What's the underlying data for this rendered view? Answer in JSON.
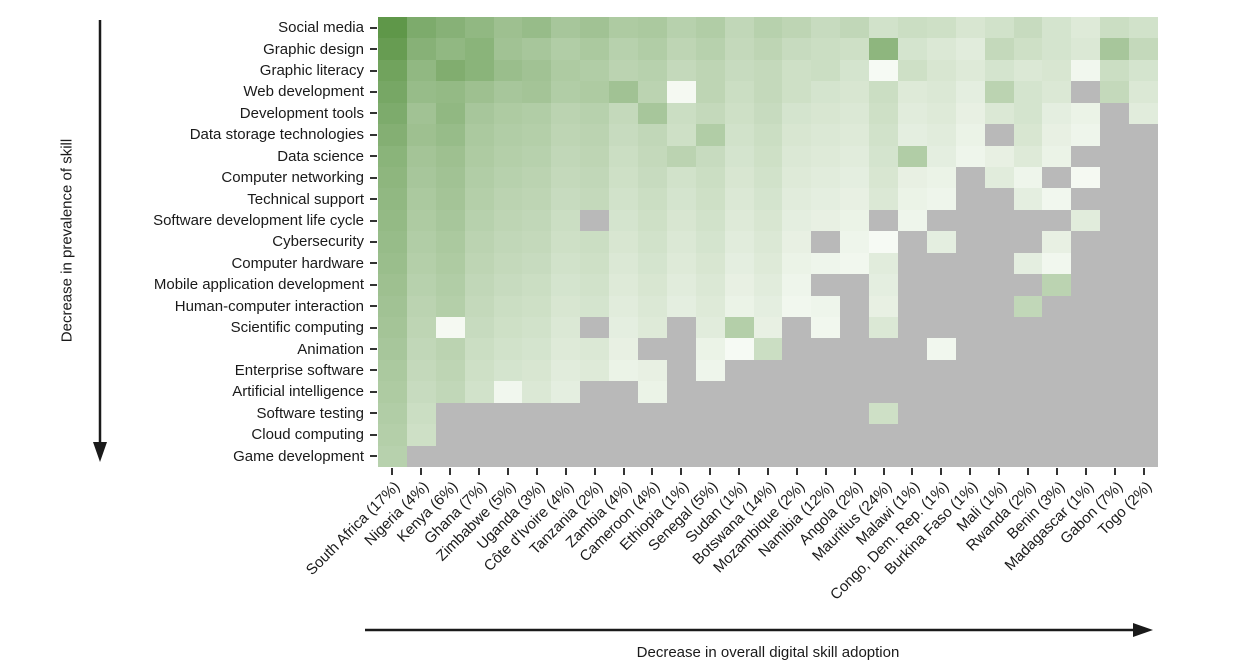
{
  "figure": {
    "y_axis_annotation": "Decrease in prevalence of skill",
    "x_axis_annotation": "Decrease in overall digital skill adoption"
  },
  "colors": {
    "green_high": "#5a9444",
    "green_low": "#fbfdf9",
    "missing": "#b9b9b9",
    "background": "#ffffff",
    "tick": "#333333",
    "arrow": "#1a1a1a"
  },
  "chart_data": {
    "type": "heatmap",
    "title": "",
    "xlabel": "Decrease in overall digital skill adoption",
    "ylabel": "Decrease in prevalence of skill",
    "legend_position": "none",
    "grid": false,
    "value_encoding": "estimated relative skill prevalence 0-100 (darker green = higher); null = no data (gray cell)",
    "rows": [
      "Social media",
      "Graphic design",
      "Graphic literacy",
      "Web development",
      "Development tools",
      "Data storage technologies",
      "Data science",
      "Computer networking",
      "Technical support",
      "Software development life cycle",
      "Cybersecurity",
      "Computer hardware",
      "Mobile application development",
      "Human-computer interaction",
      "Scientific computing",
      "Animation",
      "Enterprise software",
      "Artificial intelligence",
      "Software testing",
      "Cloud computing",
      "Game development"
    ],
    "columns": [
      "South Africa (17%)",
      "Nigeria (4%)",
      "Kenya (6%)",
      "Ghana (7%)",
      "Zimbabwe (5%)",
      "Uganda (3%)",
      "Côte d'Ivoire (4%)",
      "Tanzania (2%)",
      "Zambia (4%)",
      "Cameroon (4%)",
      "Ethiopia (1%)",
      "Senegal (5%)",
      "Sudan (1%)",
      "Botswana (14%)",
      "Mozambique (2%)",
      "Namibia (12%)",
      "Angola (2%)",
      "Mauritius (24%)",
      "Malawi (1%)",
      "Congo, Dem. Rep. (1%)",
      "Burkina Faso (1%)",
      "Mali (1%)",
      "Rwanda (2%)",
      "Benin (3%)",
      "Madagascar (1%)",
      "Gabon (7%)",
      "Togo (2%)"
    ],
    "values": [
      [
        97,
        78,
        72,
        66,
        58,
        62,
        52,
        56,
        48,
        50,
        42,
        46,
        36,
        42,
        38,
        32,
        36,
        26,
        30,
        28,
        22,
        26,
        32,
        24,
        18,
        30,
        26
      ],
      [
        92,
        72,
        66,
        70,
        56,
        52,
        46,
        50,
        42,
        46,
        38,
        42,
        34,
        38,
        32,
        30,
        28,
        68,
        24,
        20,
        16,
        34,
        28,
        24,
        20,
        52,
        34
      ],
      [
        86,
        66,
        76,
        70,
        60,
        56,
        48,
        46,
        40,
        42,
        34,
        38,
        32,
        34,
        28,
        30,
        24,
        3,
        28,
        22,
        18,
        24,
        20,
        22,
        6,
        30,
        24
      ],
      [
        82,
        62,
        64,
        58,
        52,
        54,
        46,
        48,
        56,
        40,
        4,
        38,
        30,
        34,
        28,
        24,
        22,
        30,
        18,
        20,
        14,
        40,
        24,
        20,
        null,
        34,
        20
      ],
      [
        78,
        56,
        66,
        52,
        48,
        46,
        40,
        42,
        34,
        52,
        30,
        34,
        28,
        32,
        24,
        22,
        20,
        28,
        16,
        18,
        12,
        20,
        24,
        14,
        10,
        null,
        16
      ],
      [
        74,
        58,
        62,
        50,
        46,
        44,
        38,
        40,
        32,
        36,
        28,
        46,
        26,
        30,
        22,
        20,
        18,
        26,
        14,
        16,
        10,
        null,
        22,
        12,
        8,
        null,
        null
      ],
      [
        70,
        54,
        58,
        48,
        44,
        42,
        36,
        38,
        30,
        34,
        40,
        32,
        24,
        28,
        20,
        18,
        16,
        24,
        46,
        14,
        8,
        12,
        18,
        10,
        null,
        null,
        null
      ],
      [
        68,
        52,
        56,
        46,
        42,
        40,
        34,
        36,
        28,
        32,
        26,
        30,
        22,
        26,
        18,
        16,
        14,
        22,
        12,
        10,
        null,
        16,
        8,
        null,
        4,
        null,
        null
      ],
      [
        66,
        50,
        54,
        44,
        40,
        38,
        32,
        34,
        26,
        30,
        24,
        28,
        20,
        24,
        16,
        14,
        12,
        20,
        10,
        8,
        null,
        null,
        14,
        6,
        null,
        null,
        null
      ],
      [
        64,
        48,
        52,
        42,
        38,
        36,
        30,
        null,
        24,
        28,
        22,
        26,
        18,
        22,
        14,
        12,
        10,
        null,
        8,
        null,
        null,
        null,
        null,
        null,
        16,
        null,
        null
      ],
      [
        62,
        46,
        50,
        40,
        36,
        34,
        28,
        30,
        22,
        26,
        20,
        24,
        16,
        20,
        12,
        null,
        8,
        3,
        null,
        14,
        null,
        null,
        null,
        12,
        null,
        null,
        null
      ],
      [
        60,
        44,
        48,
        38,
        34,
        32,
        26,
        28,
        20,
        24,
        18,
        22,
        14,
        18,
        10,
        8,
        6,
        16,
        null,
        null,
        null,
        null,
        14,
        6,
        null,
        null,
        null
      ],
      [
        58,
        42,
        46,
        36,
        32,
        30,
        24,
        26,
        18,
        22,
        16,
        20,
        12,
        16,
        8,
        null,
        null,
        14,
        null,
        null,
        null,
        null,
        null,
        40,
        null,
        null,
        null
      ],
      [
        56,
        40,
        44,
        34,
        30,
        28,
        22,
        24,
        16,
        20,
        14,
        18,
        10,
        14,
        6,
        8,
        null,
        12,
        null,
        null,
        null,
        null,
        36,
        null,
        null,
        null,
        null
      ],
      [
        54,
        38,
        4,
        32,
        28,
        26,
        20,
        null,
        14,
        18,
        null,
        16,
        44,
        12,
        null,
        6,
        null,
        20,
        null,
        null,
        null,
        null,
        null,
        null,
        null,
        null,
        null
      ],
      [
        52,
        36,
        40,
        30,
        26,
        24,
        18,
        20,
        12,
        null,
        null,
        10,
        3,
        30,
        null,
        null,
        null,
        null,
        null,
        6,
        null,
        null,
        null,
        null,
        null,
        null,
        null
      ],
      [
        50,
        34,
        38,
        28,
        24,
        22,
        16,
        18,
        10,
        12,
        null,
        8,
        null,
        null,
        null,
        null,
        null,
        null,
        null,
        null,
        null,
        null,
        null,
        null,
        null,
        null,
        null
      ],
      [
        48,
        32,
        36,
        26,
        6,
        20,
        14,
        null,
        null,
        10,
        null,
        null,
        null,
        null,
        null,
        null,
        null,
        null,
        null,
        null,
        null,
        null,
        null,
        null,
        null,
        null,
        null
      ],
      [
        46,
        30,
        null,
        null,
        null,
        null,
        null,
        null,
        null,
        null,
        null,
        null,
        null,
        null,
        null,
        null,
        null,
        28,
        null,
        null,
        null,
        null,
        null,
        null,
        null,
        null,
        null
      ],
      [
        44,
        28,
        null,
        null,
        null,
        null,
        null,
        null,
        null,
        null,
        null,
        null,
        null,
        null,
        null,
        null,
        null,
        null,
        null,
        null,
        null,
        null,
        null,
        null,
        null,
        null,
        null
      ],
      [
        42,
        null,
        null,
        null,
        null,
        null,
        null,
        null,
        null,
        null,
        null,
        null,
        null,
        null,
        null,
        null,
        null,
        null,
        null,
        null,
        null,
        null,
        null,
        null,
        null,
        null,
        null
      ]
    ]
  }
}
